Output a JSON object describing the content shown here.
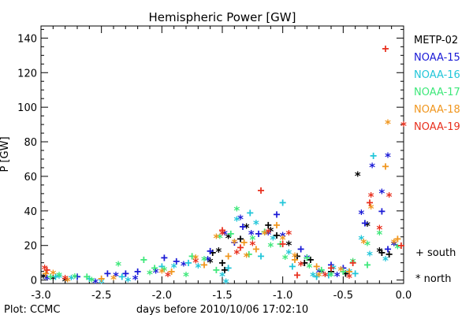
{
  "chart_data": {
    "type": "scatter",
    "title": "Hemispheric Power [GW]",
    "ylabel": "P [GW]",
    "xlabel": "days before 2010/10/06 17:02:10",
    "credit": "Plot: CCMC",
    "xlim": [
      -3.0,
      0.0
    ],
    "ylim": [
      -2,
      147
    ],
    "x_ticks": [
      "-3.0",
      "-2.5",
      "-2.0",
      "-1.5",
      "-1.0",
      "-0.5",
      "0.0"
    ],
    "y_ticks": [
      "0",
      "20",
      "40",
      "60",
      "80",
      "100",
      "120",
      "140"
    ],
    "hemisphere_legend": [
      {
        "symbol": "+",
        "label": "south"
      },
      {
        "symbol": "*",
        "label": "north"
      }
    ],
    "series": [
      {
        "name": "METP-02",
        "color": "#000000",
        "south": [
          [
            -1.58,
            16
          ],
          [
            -1.5,
            10
          ],
          [
            -1.48,
            6
          ],
          [
            -1.35,
            24
          ],
          [
            -1.12,
            32
          ],
          [
            -1.05,
            26
          ],
          [
            -0.88,
            14
          ],
          [
            -0.82,
            10
          ],
          [
            -0.77,
            12
          ],
          [
            -0.6,
            5
          ],
          [
            -0.48,
            4
          ],
          [
            -0.18,
            16
          ],
          [
            -0.12,
            15
          ]
        ],
        "north": [
          [
            -2.98,
            3
          ],
          [
            -2.9,
            2
          ],
          [
            -2.8,
            1
          ],
          [
            -1.6,
            12
          ],
          [
            -1.53,
            18
          ],
          [
            -1.45,
            26
          ],
          [
            -1.3,
            32
          ],
          [
            -1.1,
            30
          ],
          [
            -0.95,
            22
          ],
          [
            -0.68,
            6
          ],
          [
            -0.38,
            62
          ],
          [
            -0.3,
            33
          ],
          [
            -0.2,
            18
          ],
          [
            -0.08,
            22
          ]
        ]
      },
      {
        "name": "NOAA-15",
        "color": "#1a1ad6",
        "south": [
          [
            -2.7,
            2
          ],
          [
            -2.45,
            4
          ],
          [
            -2.3,
            4
          ],
          [
            -2.2,
            5
          ],
          [
            -1.98,
            13
          ],
          [
            -1.88,
            11
          ],
          [
            -1.6,
            17
          ],
          [
            -1.4,
            22
          ],
          [
            -1.33,
            31
          ],
          [
            -1.2,
            27
          ],
          [
            -1.05,
            38
          ],
          [
            -0.85,
            18
          ],
          [
            -0.6,
            9
          ],
          [
            -0.5,
            7
          ],
          [
            -0.32,
            33
          ],
          [
            -0.18,
            40
          ],
          [
            -0.13,
            18
          ]
        ],
        "north": [
          [
            -2.95,
            2
          ],
          [
            -2.55,
            0
          ],
          [
            -2.38,
            4
          ],
          [
            -2.22,
            2
          ],
          [
            -2.05,
            6
          ],
          [
            -1.82,
            10
          ],
          [
            -1.62,
            13
          ],
          [
            -1.48,
            28
          ],
          [
            -1.35,
            37
          ],
          [
            -1.26,
            28
          ],
          [
            -1.12,
            28
          ],
          [
            -1.0,
            27
          ],
          [
            -0.8,
            14
          ],
          [
            -0.7,
            6
          ],
          [
            -0.55,
            4
          ],
          [
            -0.35,
            40
          ],
          [
            -0.26,
            67
          ],
          [
            -0.18,
            52
          ],
          [
            -0.13,
            73
          ],
          [
            -0.08,
            22
          ]
        ]
      },
      {
        "name": "NOAA-16",
        "color": "#22c6d9",
        "south": [
          [
            -2.88,
            2
          ],
          [
            -2.6,
            1
          ],
          [
            -2.33,
            2
          ],
          [
            -2.0,
            8
          ],
          [
            -1.78,
            10
          ],
          [
            -1.45,
            7
          ],
          [
            -1.27,
            39
          ],
          [
            -1.18,
            14
          ],
          [
            -1.0,
            45
          ],
          [
            -0.92,
            8
          ],
          [
            -0.72,
            2
          ],
          [
            -0.62,
            3
          ],
          [
            -0.4,
            4
          ],
          [
            -0.25,
            72
          ]
        ],
        "north": [
          [
            -2.85,
            3
          ],
          [
            -2.75,
            2
          ],
          [
            -2.5,
            0
          ],
          [
            -2.28,
            1
          ],
          [
            -1.9,
            9
          ],
          [
            -1.7,
            9
          ],
          [
            -1.5,
            4
          ],
          [
            -1.47,
            0
          ],
          [
            -1.38,
            36
          ],
          [
            -1.22,
            34
          ],
          [
            -1.08,
            25
          ],
          [
            -0.95,
            17
          ],
          [
            -0.75,
            4
          ],
          [
            -0.58,
            8
          ],
          [
            -0.45,
            6
          ],
          [
            -0.35,
            25
          ],
          [
            -0.28,
            16
          ],
          [
            -0.15,
            13
          ]
        ]
      },
      {
        "name": "NOAA-17",
        "color": "#3ee87a",
        "south": [
          [
            -2.92,
            2
          ],
          [
            -2.62,
            2
          ],
          [
            -2.15,
            12
          ],
          [
            -2.06,
            7
          ],
          [
            -1.75,
            14
          ],
          [
            -1.55,
            6
          ],
          [
            -1.43,
            27
          ],
          [
            -1.28,
            15
          ],
          [
            -1.15,
            28
          ],
          [
            -1.02,
            21
          ],
          [
            -0.8,
            13
          ],
          [
            -0.68,
            6
          ],
          [
            -0.5,
            5
          ],
          [
            -0.3,
            9
          ]
        ],
        "north": [
          [
            -2.85,
            4
          ],
          [
            -2.72,
            3
          ],
          [
            -2.58,
            1
          ],
          [
            -2.36,
            10
          ],
          [
            -2.1,
            5
          ],
          [
            -1.98,
            7
          ],
          [
            -1.8,
            4
          ],
          [
            -1.65,
            13
          ],
          [
            -1.52,
            26
          ],
          [
            -1.38,
            42
          ],
          [
            -1.25,
            25
          ],
          [
            -1.1,
            21
          ],
          [
            -0.98,
            14
          ],
          [
            -0.78,
            9
          ],
          [
            -0.6,
            4
          ],
          [
            -0.42,
            12
          ],
          [
            -0.3,
            22
          ],
          [
            -0.2,
            28
          ],
          [
            -0.05,
            20
          ]
        ]
      },
      {
        "name": "NOAA-18",
        "color": "#f0961e",
        "south": [
          [
            -2.96,
            4
          ],
          [
            -2.5,
            1
          ],
          [
            -1.92,
            5
          ],
          [
            -1.65,
            9
          ],
          [
            -1.45,
            14
          ],
          [
            -1.32,
            22
          ],
          [
            -1.22,
            18
          ],
          [
            -1.05,
            32
          ],
          [
            -0.9,
            12
          ],
          [
            -0.72,
            8
          ],
          [
            -0.45,
            5
          ],
          [
            -0.15,
            66
          ],
          [
            -0.05,
            24
          ]
        ],
        "north": [
          [
            -2.9,
            5
          ],
          [
            -2.78,
            1
          ],
          [
            -2.4,
            2
          ],
          [
            -2.0,
            6
          ],
          [
            -1.72,
            14
          ],
          [
            -1.55,
            26
          ],
          [
            -1.4,
            23
          ],
          [
            -1.3,
            15
          ],
          [
            -1.15,
            28
          ],
          [
            -1.0,
            25
          ],
          [
            -0.9,
            15
          ],
          [
            -0.7,
            4
          ],
          [
            -0.52,
            7
          ],
          [
            -0.33,
            23
          ],
          [
            -0.27,
            43
          ],
          [
            -0.13,
            92
          ],
          [
            -0.08,
            23
          ]
        ]
      },
      {
        "name": "NOAA-19",
        "color": "#e8301e",
        "south": [
          [
            -2.95,
            6
          ],
          [
            -1.5,
            29
          ],
          [
            -1.35,
            19
          ],
          [
            -1.18,
            52
          ],
          [
            -1.0,
            21
          ],
          [
            -0.88,
            3
          ],
          [
            -0.6,
            7
          ],
          [
            -0.42,
            10
          ],
          [
            -0.28,
            45
          ],
          [
            -0.15,
            134
          ],
          [
            -0.02,
            20
          ]
        ],
        "north": [
          [
            -2.97,
            8
          ],
          [
            -2.8,
            2
          ],
          [
            -1.95,
            4
          ],
          [
            -1.72,
            12
          ],
          [
            -1.5,
            28
          ],
          [
            -1.38,
            17
          ],
          [
            -1.25,
            22
          ],
          [
            -1.12,
            29
          ],
          [
            -0.95,
            28
          ],
          [
            -0.85,
            10
          ],
          [
            -0.65,
            4
          ],
          [
            -0.45,
            3
          ],
          [
            -0.27,
            50
          ],
          [
            -0.2,
            31
          ],
          [
            -0.12,
            50
          ],
          [
            0.0,
            91
          ]
        ]
      }
    ]
  }
}
